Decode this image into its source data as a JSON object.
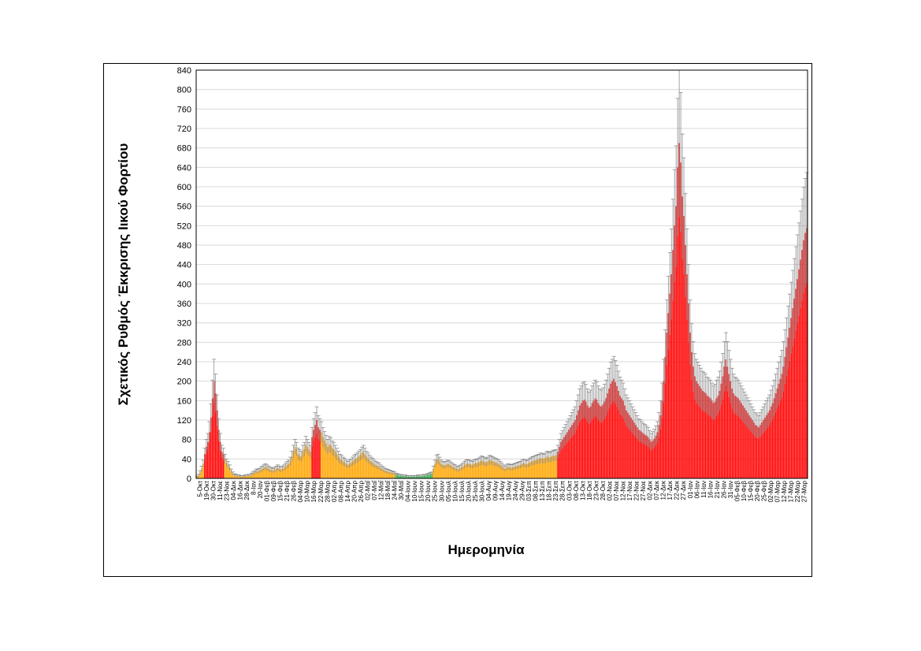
{
  "chart_data": {
    "type": "bar",
    "title": "",
    "xlabel": "Ημερομηνία",
    "ylabel": "Σχετικός Ρυθμός Έκκρισης Ιικού Φορτίου",
    "ylim": [
      0,
      840
    ],
    "yticks": [
      0,
      40,
      80,
      120,
      160,
      200,
      240,
      280,
      320,
      360,
      400,
      440,
      480,
      520,
      560,
      600,
      640,
      680,
      720,
      760,
      800,
      840
    ],
    "grid": "horizontal",
    "error_bars": true,
    "colors": {
      "red": "#ff0000",
      "orange": "#ffa500",
      "green": "#2db34a",
      "error_bar": "#7f7f7f",
      "grid": "#d9d9d9"
    },
    "x_tick_labels": [
      "5-Οκτ",
      "19-Οκτ",
      "30-Οκτ",
      "11-Νοε",
      "23-Νοε",
      "04-Δεκ",
      "16-Δεκ",
      "28-Δεκ",
      "8-Ιαν",
      "20-Ιαν",
      "01-Φεβ",
      "09-Φεβ",
      "15-Φεβ",
      "21-Φεβ",
      "26-Φεβ",
      "04-Μαρ",
      "10-Μαρ",
      "16-Μαρ",
      "22-Μαρ",
      "28-Μαρ",
      "02-Απρ",
      "08-Απρ",
      "14-Απρ",
      "20-Απρ",
      "26-Απρ",
      "02-Μαΐ",
      "07-Μαΐ",
      "12-Μαΐ",
      "18-Μαΐ",
      "24-Μαΐ",
      "30-Μαΐ",
      "04-Ιουν",
      "10-Ιουν",
      "15-Ιουν",
      "20-Ιουν",
      "25-Ιουν",
      "30-Ιουν",
      "05-Ιουλ",
      "10-Ιουλ",
      "15-Ιουλ",
      "20-Ιουλ",
      "25-Ιουλ",
      "30-Ιουλ",
      "04-Αυγ",
      "09-Αυγ",
      "14-Αυγ",
      "19-Αυγ",
      "24-Αυγ",
      "29-Αυγ",
      "03-Σεπ",
      "08-Σεπ",
      "13-Σεπ",
      "18-Σεπ",
      "23-Σεπ",
      "28-Σεπ",
      "03-Οκτ",
      "08-Οκτ",
      "13-Οκτ",
      "18-Οκτ",
      "23-Οκτ",
      "28-Οκτ",
      "02-Νοε",
      "07-Νοε",
      "12-Νοε",
      "17-Νοε",
      "22-Νοε",
      "27-Νοε",
      "02-Δεκ",
      "07-Δεκ",
      "12-Δεκ",
      "17-Δεκ",
      "22-Δεκ",
      "27-Δεκ",
      "01-Ιαν",
      "06-Ιαν",
      "11-Ιαν",
      "16-Ιαν",
      "21-Ιαν",
      "26-Ιαν",
      "31-Ιαν",
      "05-Φεβ",
      "10-Φεβ",
      "15-Φεβ",
      "20-Φεβ",
      "25-Φεβ",
      "02-Μαρ",
      "07-Μαρ",
      "12-Μαρ",
      "17-Μαρ",
      "22-Μαρ",
      "27-Μαρ"
    ],
    "series": [
      {
        "color_segments": [
          {
            "color": "orange",
            "values": [
              3,
              6,
              12,
              20,
              30
            ]
          },
          {
            "color": "red",
            "values": [
              50,
              65,
              75,
              95,
              125,
              165,
              200,
              175,
              140,
              100,
              75,
              55,
              50
            ]
          },
          {
            "color": "orange",
            "values": [
              40,
              32,
              28,
              22,
              15,
              10,
              7,
              6,
              5,
              5,
              4,
              4,
              4,
              5,
              5,
              6,
              6,
              8,
              10,
              12,
              15,
              14,
              16,
              18,
              20,
              22,
              24,
              22,
              20,
              18,
              17,
              16,
              18,
              20,
              22,
              20,
              18,
              20,
              22,
              25,
              28,
              30,
              35,
              45,
              55,
              65,
              60,
              50,
              48,
              45,
              55,
              60,
              70,
              65,
              60,
              55
            ]
          },
          {
            "color": "red",
            "values": [
              85,
              100,
              110,
              120,
              105,
              100
            ]
          },
          {
            "color": "orange",
            "values": [
              95,
              85,
              78,
              72,
              65,
              70,
              68,
              62,
              60,
              55,
              50,
              45,
              40,
              38,
              35,
              33,
              30,
              28,
              30,
              32,
              35,
              38,
              40,
              42,
              45,
              48,
              52,
              55,
              50,
              45,
              42,
              38,
              35,
              33,
              30,
              28,
              26,
              25,
              22,
              20,
              18,
              16,
              15,
              14,
              13,
              12,
              11,
              10
            ]
          },
          {
            "color": "green",
            "values": [
              8,
              7,
              6,
              6,
              5,
              5,
              5,
              4,
              4,
              4,
              4,
              4,
              4,
              4,
              5,
              5,
              5,
              5,
              6,
              6,
              7,
              8,
              9,
              10
            ]
          },
          {
            "color": "orange",
            "values": [
              20,
              30,
              38,
              40,
              35,
              30,
              28,
              27,
              28,
              30,
              29,
              27,
              25,
              23,
              22,
              20,
              19,
              21,
              23,
              25,
              28,
              30,
              31,
              30,
              29,
              28,
              30,
              32,
              31,
              33,
              35,
              37,
              36,
              34,
              33,
              35,
              38,
              37,
              36,
              34,
              33,
              32,
              30,
              28,
              25,
              22,
              20,
              22,
              24,
              23,
              22,
              23,
              24,
              25,
              26,
              27,
              28,
              30,
              32,
              30,
              29,
              31,
              33,
              35,
              36,
              37,
              38,
              39,
              40,
              42,
              41,
              40,
              42,
              45,
              44,
              43,
              45,
              47,
              46,
              48
            ]
          },
          {
            "color": "red",
            "values": [
              55,
              65,
              75,
              80,
              85,
              90,
              95,
              100,
              105,
              110,
              115,
              120,
              130,
              140,
              150,
              155,
              160,
              162,
              158,
              150,
              145,
              148,
              155,
              160,
              165,
              162,
              155,
              150,
              148,
              152,
              158,
              165,
              175,
              185,
              195,
              200,
              205,
              198,
              190,
              180,
              170,
              165,
              160,
              150,
              140,
              135,
              130,
              125,
              120,
              115,
              110,
              105,
              100,
              98,
              95,
              92,
              90,
              88,
              85,
              80,
              75,
              78,
              82,
              88,
              95,
              110,
              130,
              160,
              200,
              250,
              300,
              340,
              380,
              420,
              470,
              520,
              560,
              640,
              690,
              650,
              580,
              540,
              480,
              420,
              360,
              300,
              260,
              230,
              210,
              200,
              195,
              190,
              185,
              180,
              178,
              175,
              170,
              168,
              165,
              160,
              155,
              158,
              165,
              170,
              180,
              195,
              210,
              230,
              245,
              230,
              215,
              200,
              185,
              175,
              170,
              168,
              165,
              160,
              155,
              150,
              145,
              140,
              135,
              130,
              125,
              120,
              115,
              110,
              108,
              105,
              110,
              115,
              120,
              125,
              130,
              135,
              140,
              148,
              155,
              165,
              175,
              185,
              195,
              205,
              215,
              230,
              250,
              270,
              290,
              310,
              330,
              350,
              370,
              390,
              410,
              430,
              450,
              470,
              490,
              505,
              515
            ]
          }
        ]
      }
    ]
  }
}
